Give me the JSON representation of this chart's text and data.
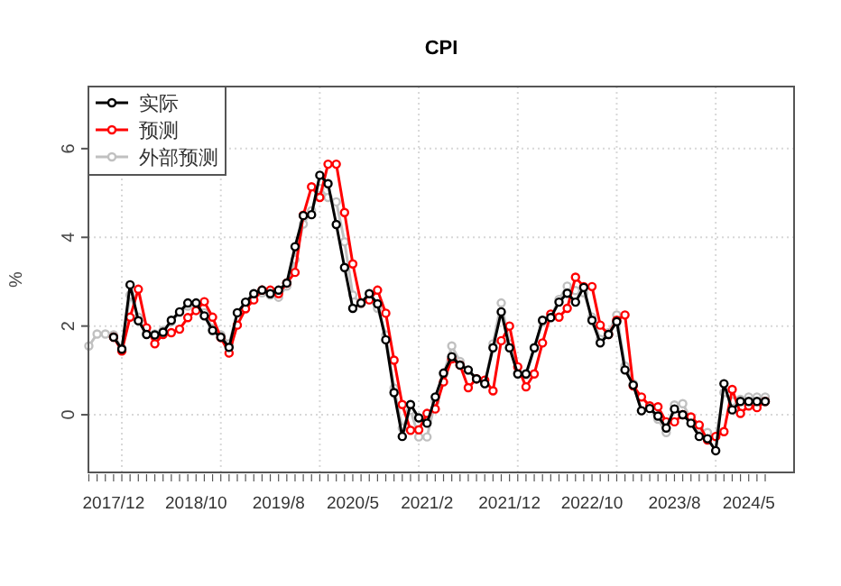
{
  "chart_data": {
    "type": "line",
    "title": "CPI",
    "ylabel": "%",
    "categories": [
      null,
      null,
      null,
      "2017/12",
      null,
      null,
      null,
      null,
      null,
      null,
      null,
      null,
      null,
      "2018/10",
      null,
      null,
      null,
      null,
      null,
      null,
      null,
      null,
      null,
      "2019/8",
      null,
      null,
      null,
      null,
      null,
      null,
      null,
      null,
      "2020/5",
      null,
      null,
      null,
      null,
      null,
      null,
      null,
      null,
      "2021/2",
      null,
      null,
      null,
      null,
      null,
      null,
      null,
      null,
      null,
      "2021/12",
      null,
      null,
      null,
      null,
      null,
      null,
      null,
      null,
      null,
      "2022/10",
      null,
      null,
      null,
      null,
      null,
      null,
      null,
      null,
      null,
      "2023/8",
      null,
      null,
      null,
      null,
      null,
      null,
      null,
      null,
      "2024/5",
      null,
      null
    ],
    "series": [
      {
        "name": "实际",
        "color": "#000000",
        "values": [
          null,
          null,
          null,
          1.75,
          1.48,
          2.93,
          2.12,
          1.81,
          1.8,
          1.86,
          2.13,
          2.32,
          2.52,
          2.52,
          2.23,
          1.9,
          1.75,
          1.52,
          2.3,
          2.54,
          2.73,
          2.81,
          2.73,
          2.81,
          2.97,
          3.79,
          4.49,
          4.51,
          5.4,
          5.21,
          4.29,
          3.32,
          2.4,
          2.52,
          2.73,
          2.5,
          1.69,
          0.5,
          -0.49,
          0.23,
          -0.07,
          -0.19,
          0.4,
          0.94,
          1.31,
          1.12,
          1.01,
          0.81,
          0.7,
          1.51,
          2.32,
          1.51,
          0.92,
          0.92,
          1.51,
          2.13,
          2.19,
          2.54,
          2.74,
          2.54,
          2.87,
          2.13,
          1.62,
          1.81,
          2.1,
          1.01,
          0.67,
          0.09,
          0.14,
          -0.03,
          -0.3,
          0.13,
          0.0,
          -0.19,
          -0.49,
          -0.54,
          -0.81,
          0.7,
          0.11,
          0.3,
          0.3,
          0.3,
          0.3
        ]
      },
      {
        "name": "预测",
        "color": "#ff0000",
        "values": [
          null,
          null,
          null,
          1.75,
          1.44,
          2.2,
          2.83,
          1.96,
          1.6,
          1.81,
          1.85,
          1.93,
          2.19,
          2.35,
          2.55,
          2.2,
          1.74,
          1.39,
          2.02,
          2.39,
          2.59,
          2.81,
          2.81,
          2.73,
          2.97,
          3.21,
          4.5,
          5.14,
          4.9,
          5.65,
          5.65,
          4.56,
          3.4,
          2.52,
          2.59,
          2.81,
          2.29,
          1.23,
          0.23,
          -0.35,
          -0.34,
          0.03,
          0.13,
          0.74,
          1.26,
          1.12,
          0.61,
          0.81,
          0.78,
          0.54,
          1.67,
          2.0,
          1.08,
          0.63,
          0.92,
          1.62,
          2.27,
          2.2,
          2.4,
          3.1,
          2.89,
          2.89,
          2.02,
          1.81,
          2.13,
          2.25,
          0.65,
          0.4,
          0.2,
          0.18,
          -0.16,
          -0.16,
          0.0,
          -0.05,
          -0.23,
          -0.57,
          -0.49,
          -0.38,
          0.57,
          0.03,
          0.2,
          0.16,
          0.3
        ]
      },
      {
        "name": "外部预测",
        "color": "#c0c0c0",
        "values": [
          1.55,
          1.82,
          1.82,
          1.8,
          1.5,
          2.7,
          2.2,
          1.85,
          1.82,
          1.9,
          2.1,
          2.3,
          2.45,
          2.5,
          2.3,
          1.95,
          1.8,
          1.6,
          2.3,
          2.5,
          2.7,
          2.75,
          2.7,
          2.65,
          2.9,
          3.5,
          4.3,
          4.6,
          5.1,
          4.9,
          4.8,
          3.9,
          2.7,
          2.5,
          2.6,
          2.4,
          1.8,
          0.6,
          -0.3,
          0.1,
          -0.5,
          -0.5,
          0.3,
          0.9,
          1.55,
          1.2,
          1.0,
          0.8,
          0.7,
          1.6,
          2.52,
          1.6,
          0.95,
          0.9,
          1.5,
          2.1,
          2.2,
          2.6,
          2.9,
          2.8,
          2.75,
          2.2,
          1.7,
          1.85,
          2.25,
          1.1,
          0.7,
          0.1,
          0.15,
          -0.1,
          -0.4,
          0.22,
          0.25,
          -0.1,
          -0.3,
          -0.4,
          -0.5,
          0.5,
          0.3,
          0.35,
          0.4,
          0.4,
          0.4
        ]
      }
    ],
    "ylim": [
      -1.3,
      7.4
    ],
    "yticks": [
      0,
      2,
      4,
      6
    ],
    "grid": true,
    "legend": "top left",
    "marker": "circle",
    "line_style": "solid"
  }
}
